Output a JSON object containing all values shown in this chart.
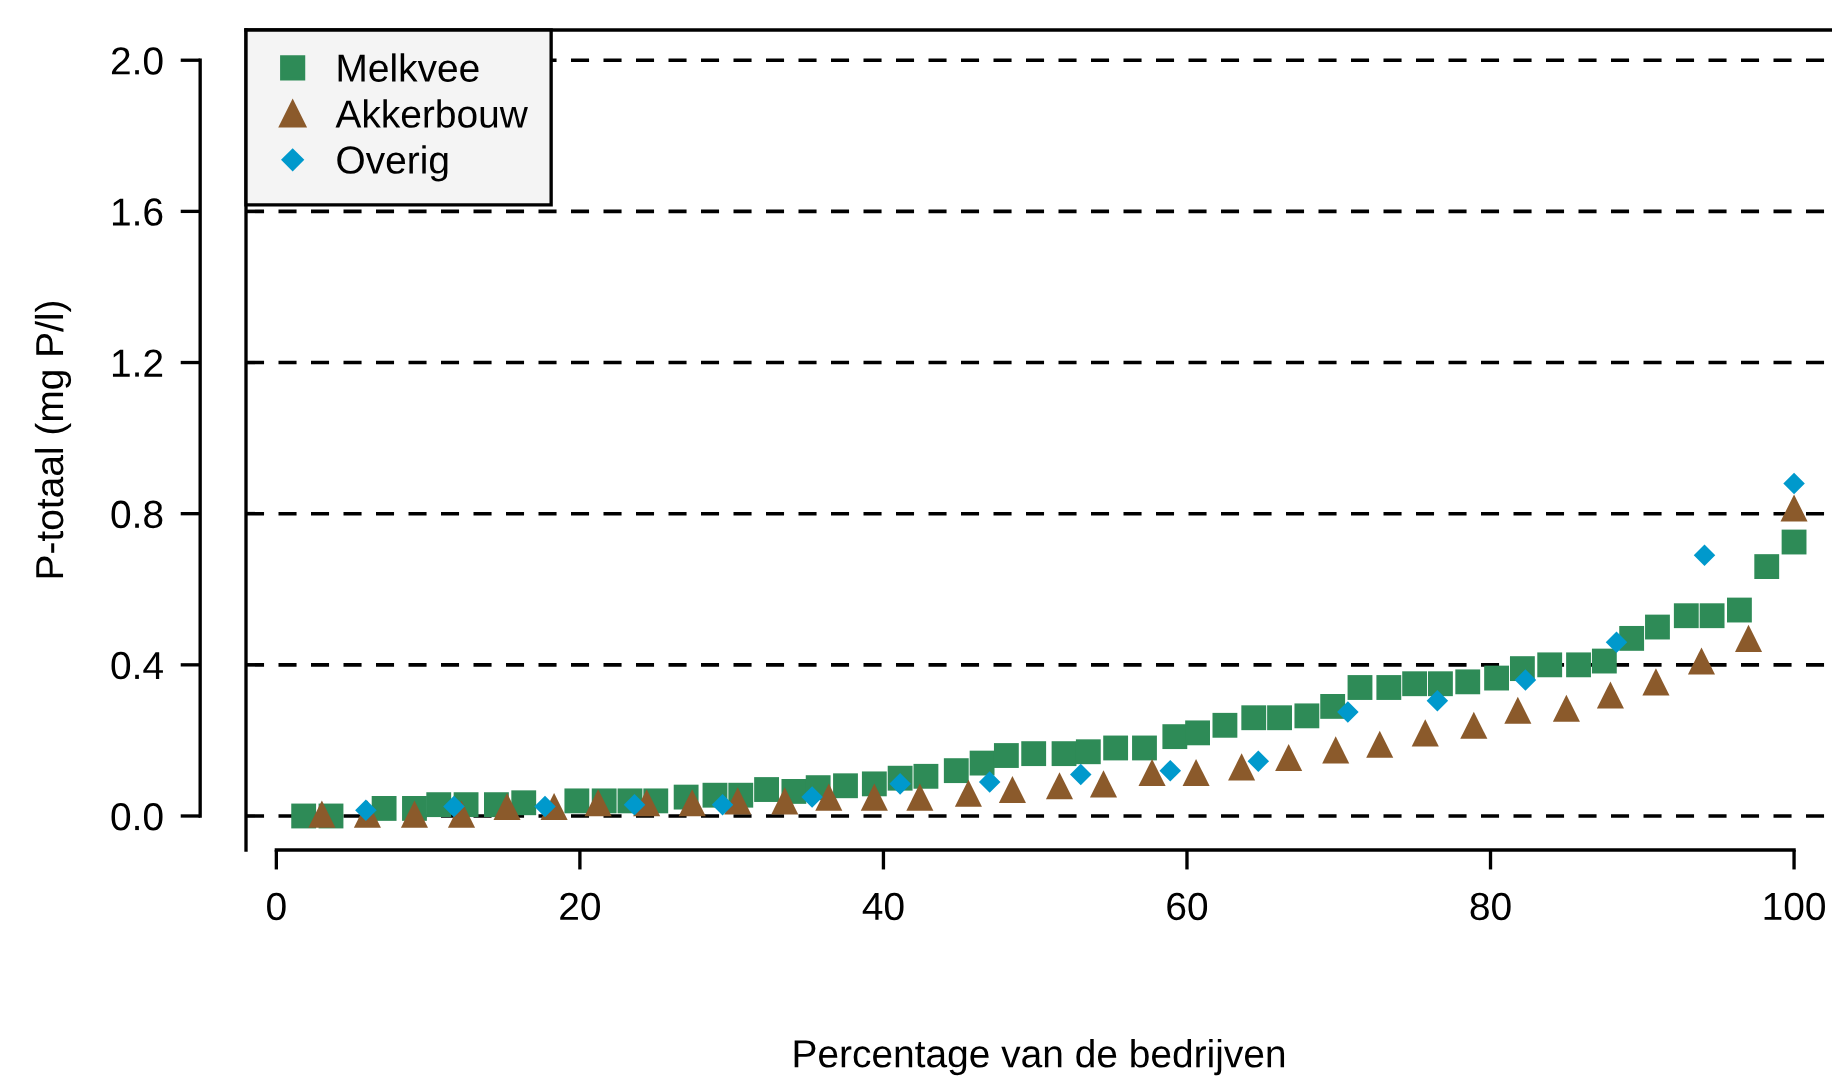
{
  "chart_data": {
    "type": "scatter",
    "xlabel": "Percentage van de bedrijven",
    "ylabel": "P-totaal (mg P/l)",
    "xlim": [
      -2,
      102.5
    ],
    "ylim": [
      -0.09,
      2.08
    ],
    "xticks": [
      0,
      20,
      40,
      60,
      80,
      100
    ],
    "yticks": [
      {
        "value": 0,
        "label": "0.0"
      },
      {
        "value": 0.4,
        "label": "0.4"
      },
      {
        "value": 0.8,
        "label": "0.8"
      },
      {
        "value": 1.2,
        "label": "1.2"
      },
      {
        "value": 1.6,
        "label": "1.6"
      },
      {
        "value": 2.0,
        "label": "2.0"
      }
    ],
    "grid": "y",
    "legend": "top left",
    "series": [
      {
        "name": "Melkvee",
        "color": "#2e8b57",
        "marker": "square",
        "x": [
          1.8,
          3.6,
          5.4,
          7.1,
          9.1,
          10.7,
          12.5,
          14.5,
          16.3,
          17.9,
          19.8,
          21.6,
          23.3,
          25,
          27,
          28.9,
          30.6,
          32.3,
          34.1,
          35.7,
          37.5,
          39.4,
          41.1,
          42.8,
          44.8,
          46.5,
          48.1,
          49.9,
          51.9,
          53.5,
          55.3,
          57.2,
          59.2,
          60.7,
          62.5,
          64.4,
          66.1,
          67.9,
          69.6,
          71.4,
          73.3,
          75,
          76.7,
          78.5,
          80.4,
          82.1,
          83.9,
          85.8,
          87.5,
          89.3,
          91,
          92.9,
          94.6,
          96.4,
          98.2,
          100
        ],
        "values": [
          0.0,
          0.0,
          null,
          0.02,
          0.02,
          0.03,
          0.03,
          0.03,
          0.035,
          null,
          0.04,
          0.04,
          0.04,
          0.04,
          0.05,
          0.055,
          0.055,
          0.07,
          0.065,
          0.075,
          0.08,
          0.085,
          0.1,
          0.105,
          0.12,
          0.14,
          0.16,
          0.165,
          0.165,
          0.17,
          0.18,
          0.18,
          0.21,
          0.22,
          0.24,
          0.26,
          0.26,
          0.265,
          0.29,
          0.34,
          0.34,
          0.35,
          0.35,
          0.355,
          0.365,
          0.39,
          0.4,
          0.4,
          0.41,
          0.47,
          0.5,
          0.53,
          0.53,
          0.545,
          0.66,
          0.725
        ]
      },
      {
        "name": "Akkerbouw",
        "color": "#8b5a2b",
        "marker": "triangle",
        "x": [
          3,
          6,
          9.1,
          12.2,
          15.2,
          18.3,
          21.2,
          24.4,
          27.4,
          30.4,
          33.5,
          36.4,
          39.4,
          42.4,
          45.6,
          48.5,
          51.6,
          54.5,
          57.7,
          60.6,
          63.6,
          66.7,
          69.8,
          72.7,
          75.7,
          78.9,
          81.8,
          85,
          87.9,
          90.9,
          93.9,
          97,
          100
        ],
        "values": [
          0.005,
          0.005,
          0.005,
          0.005,
          0.025,
          0.025,
          0.035,
          0.035,
          0.035,
          0.04,
          0.04,
          0.05,
          0.05,
          0.05,
          0.06,
          0.07,
          0.08,
          0.085,
          0.115,
          0.115,
          0.13,
          0.155,
          0.175,
          0.19,
          0.22,
          0.24,
          0.28,
          0.285,
          0.32,
          0.355,
          0.41,
          0.47,
          0.815
        ]
      },
      {
        "name": "Overig",
        "color": "#0099cc",
        "marker": "diamond",
        "x": [
          5.9,
          11.7,
          17.7,
          23.6,
          29.4,
          35.3,
          41.1,
          47,
          53,
          58.9,
          64.7,
          70.6,
          76.5,
          82.3,
          88.3,
          94.1,
          100
        ],
        "values": [
          0.015,
          0.025,
          0.025,
          0.03,
          0.03,
          0.05,
          0.085,
          0.09,
          0.11,
          0.12,
          0.145,
          0.275,
          0.305,
          0.36,
          0.46,
          0.69,
          0.88
        ]
      }
    ]
  }
}
